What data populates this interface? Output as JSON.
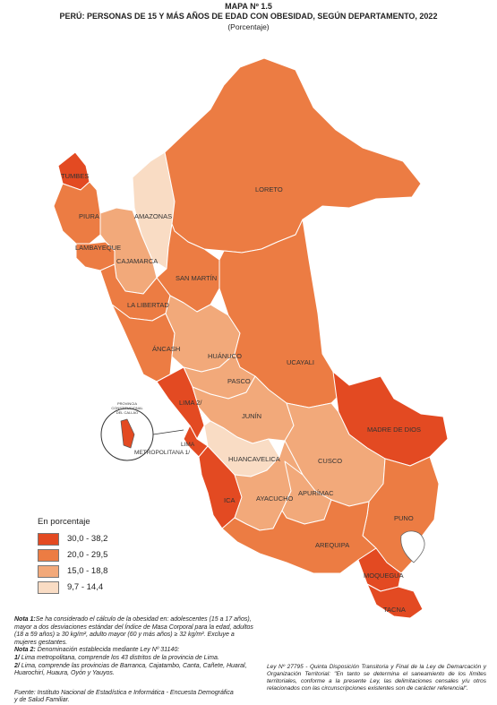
{
  "title": {
    "line1": "MAPA Nº 1.5",
    "line2": "PERÚ: PERSONAS DE 15 Y MÁS AÑOS DE EDAD CON OBESIDAD, SEGÚN DEPARTAMENTO, 2022",
    "line3": "(Porcentaje)"
  },
  "legend": {
    "title": "En porcentaje",
    "classes": [
      {
        "range": "30,0 - 38,2",
        "color": "#e34a22"
      },
      {
        "range": "20,0 - 29,5",
        "color": "#ec7c43"
      },
      {
        "range": "15,0 - 18,8",
        "color": "#f2a97a"
      },
      {
        "range": "9,7 - 14,4",
        "color": "#f9dcc4"
      }
    ]
  },
  "departments": [
    {
      "name": "TUMBES",
      "class": 0
    },
    {
      "name": "PIURA",
      "class": 1
    },
    {
      "name": "LAMBAYEQUE",
      "class": 1
    },
    {
      "name": "AMAZONAS",
      "class": 3
    },
    {
      "name": "CAJAMARCA",
      "class": 2
    },
    {
      "name": "LORETO",
      "class": 1
    },
    {
      "name": "SAN MARTÍN",
      "class": 1
    },
    {
      "name": "LA LIBERTAD",
      "class": 1
    },
    {
      "name": "ÁNCASH",
      "class": 1
    },
    {
      "name": "HUÁNUCO",
      "class": 2
    },
    {
      "name": "UCAYALI",
      "class": 1
    },
    {
      "name": "PASCO",
      "class": 2
    },
    {
      "name": "LIMA 2/",
      "class": 0
    },
    {
      "name": "LIMA METROPOLITANA 1/",
      "class": 0
    },
    {
      "name": "JUNÍN",
      "class": 2
    },
    {
      "name": "MADRE DE DIOS",
      "class": 0
    },
    {
      "name": "HUANCAVELICA",
      "class": 3
    },
    {
      "name": "CUSCO",
      "class": 2
    },
    {
      "name": "ICA",
      "class": 0
    },
    {
      "name": "AYACUCHO",
      "class": 2
    },
    {
      "name": "APURÍMAC",
      "class": 2
    },
    {
      "name": "PUNO",
      "class": 1
    },
    {
      "name": "AREQUIPA",
      "class": 1
    },
    {
      "name": "MOQUEGUA",
      "class": 0
    },
    {
      "name": "TACNA",
      "class": 0
    },
    {
      "name": "PROVINCIA CONSTITUCIONAL DEL CALLAO",
      "class": 0
    }
  ],
  "notes": {
    "n1_label": "Nota 1:",
    "n1_text": "Se ha considerado el cálculo de la obesidad en: adolescentes (15 a 17 años), mayor a dos desviaciones estándar del Índice de Masa Corporal para la edad, adultos (18 a 59 años) ≥ 30 kg/m², adulto mayor (60 y más años) ≥ 32 kg/m². Excluye a mujeres gestantes.",
    "n2_label": "Nota 2:",
    "n2_text": "Denominación establecida mediante Ley Nº 31140:",
    "n2a_label": "1/",
    "n2a_text": "Lima metropolitana, comprende los 43 distritos de la provincia de Lima.",
    "n2b_label": "2/",
    "n2b_text": "Lima, comprende las provincias de Barranca, Cajatambo, Canta, Cañete, Huaral, Huarochirí, Huaura, Oyón y Yauyos."
  },
  "source": "Fuente: Instituto Nacional de Estadística e Informática - Encuesta Demográfica y de Salud Familiar.",
  "legal": "Ley Nº 27795 - Quinta Disposición Transitoria y Final de la Ley de Demarcación y Organización Territorial: \"En tanto se determina el saneamiento de los límites territoriales, conforme a la presente Ley, las delimitaciones censales y/u otros relacionados con las circunscripciones existentes son de carácter referencial\"."
}
